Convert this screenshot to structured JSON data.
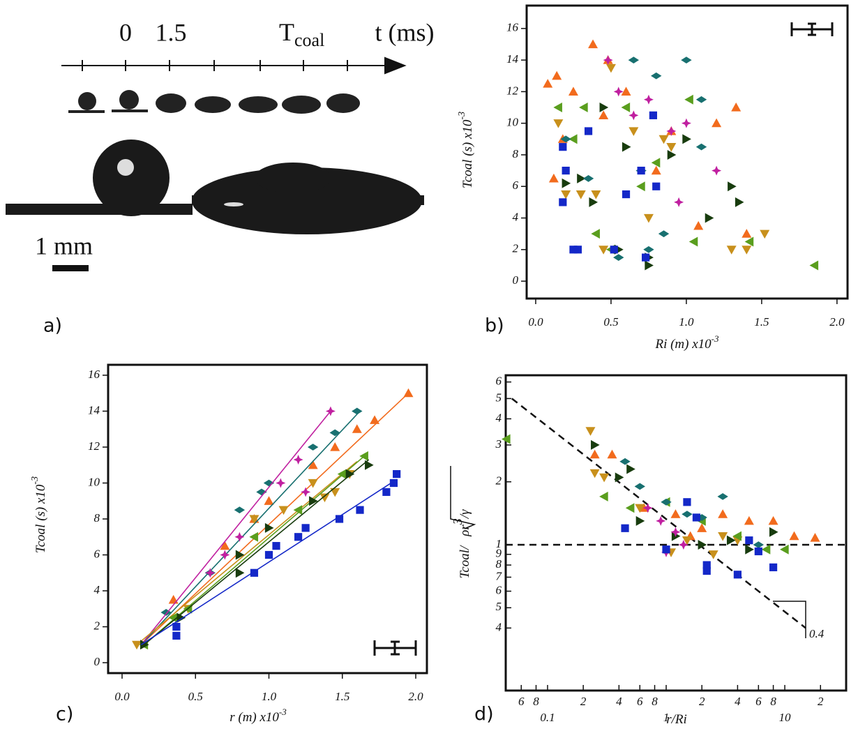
{
  "timeline": {
    "ticks": [
      "0",
      "1.5"
    ],
    "t_coal": "T",
    "t_coal_sub": "coal",
    "axis_label": "t (ms)"
  },
  "scale_bar": "1 mm",
  "panel_labels": [
    "a)",
    "b)",
    "c)",
    "d)"
  ],
  "chart_data": [
    {
      "type": "scatter",
      "xlabel": "Ri (m) x10",
      "xlabel_exp": "-3",
      "ylabel": "Tcoal (s) x10",
      "ylabel_exp": "-3",
      "xlim": [
        -0.06,
        2.07
      ],
      "ylim": [
        -1.1,
        17.45
      ],
      "xticks": [
        {
          "value": 0,
          "label": "0.0"
        },
        0.5,
        {
          "value": 1,
          "label": "1.0"
        },
        1.5,
        {
          "value": 2,
          "label": "2.0"
        }
      ],
      "yticks": [
        0,
        2,
        4,
        6,
        8,
        10,
        12,
        14,
        16
      ],
      "series": [
        {
          "color": "#f26b1d",
          "marker": "up",
          "x": [
            0.08,
            0.14,
            0.25,
            0.38,
            0.48,
            0.12,
            0.18,
            0.45,
            0.6,
            0.9,
            1.2,
            1.33,
            1.08,
            1.4,
            0.8
          ],
          "y": [
            12.5,
            13,
            12,
            15,
            14,
            6.5,
            9,
            10.5,
            12,
            9.5,
            10,
            11,
            3.5,
            3,
            7
          ]
        },
        {
          "color": "#c8901c",
          "marker": "down",
          "x": [
            0.15,
            0.2,
            0.3,
            0.4,
            0.5,
            0.45,
            0.65,
            0.75,
            0.9,
            1.3,
            1.52,
            1.4,
            0.85
          ],
          "y": [
            10,
            5.5,
            5.5,
            5.5,
            13.5,
            2,
            9.5,
            4,
            8.5,
            2,
            3,
            2,
            9
          ]
        },
        {
          "color": "#5a9e1e",
          "marker": "left",
          "x": [
            0.15,
            0.32,
            0.4,
            0.5,
            0.6,
            0.8,
            1.02,
            1.05,
            1.42,
            1.85,
            0.25,
            0.7
          ],
          "y": [
            11,
            11,
            3,
            2,
            11,
            7.5,
            11.5,
            2.5,
            2.5,
            1,
            9,
            6
          ]
        },
        {
          "color": "#183c0e",
          "marker": "right",
          "x": [
            0.3,
            0.38,
            0.45,
            0.55,
            0.75,
            0.75,
            0.9,
            1.0,
            1.15,
            1.3,
            1.35,
            0.6,
            0.2
          ],
          "y": [
            6.5,
            5,
            11,
            2,
            1,
            1.5,
            8,
            9,
            4,
            6,
            5,
            8.5,
            6.2
          ]
        },
        {
          "color": "#187070",
          "marker": "diamond",
          "x": [
            0.2,
            0.35,
            0.55,
            0.65,
            0.8,
            1.0,
            1.1,
            0.7,
            0.85,
            1.1,
            0.75
          ],
          "y": [
            9,
            6.5,
            1.5,
            14,
            13,
            14,
            11.5,
            7,
            3,
            8.5,
            2
          ]
        },
        {
          "color": "#c020a0",
          "marker": "star",
          "x": [
            0.48,
            0.55,
            0.75,
            0.95,
            1.0,
            1.2,
            0.65,
            0.9
          ],
          "y": [
            14,
            12,
            11.5,
            5,
            10,
            7,
            10.5,
            9.5
          ]
        },
        {
          "color": "#1428c8",
          "marker": "square",
          "x": [
            0.18,
            0.18,
            0.2,
            0.25,
            0.28,
            0.52,
            0.6,
            0.7,
            0.78,
            0.8,
            0.73,
            0.35
          ],
          "y": [
            5,
            8.5,
            7,
            2,
            2,
            2,
            5.5,
            7,
            10.5,
            6,
            1.5,
            9.5
          ]
        }
      ]
    },
    {
      "type": "scatter",
      "xlabel": "r (m) x10",
      "xlabel_exp": "-3",
      "ylabel": "Tcoal (s) x10",
      "ylabel_exp": "-3",
      "xlim": [
        -0.095,
        2.076
      ],
      "ylim": [
        -0.58,
        16.58
      ],
      "xticks": [
        {
          "value": 0,
          "label": "0.0"
        },
        0.5,
        {
          "value": 1,
          "label": "1.0"
        },
        1.5,
        {
          "value": 2,
          "label": "2.0"
        }
      ],
      "yticks": [
        0,
        2,
        4,
        6,
        8,
        10,
        12,
        14,
        16
      ],
      "series": [
        {
          "color": "#f26b1d",
          "marker": "up",
          "x": [
            0.35,
            0.9,
            1.0,
            1.3,
            1.45,
            1.6,
            1.72,
            1.95,
            0.7
          ],
          "y": [
            3.5,
            8,
            9,
            11,
            12,
            13,
            13.5,
            15,
            6.5
          ],
          "fit_x": [
            0.13,
            1.95
          ],
          "fit_y": [
            1,
            15
          ]
        },
        {
          "color": "#187070",
          "marker": "diamond",
          "x": [
            0.3,
            0.8,
            0.95,
            1.3,
            1.45,
            1.6,
            1.0,
            0.6
          ],
          "y": [
            2.8,
            8.5,
            9.5,
            12,
            12.8,
            14,
            10,
            5
          ],
          "fit_x": [
            0.13,
            1.62
          ],
          "fit_y": [
            1,
            14
          ]
        },
        {
          "color": "#c020a0",
          "marker": "star",
          "x": [
            0.7,
            0.8,
            1.08,
            1.2,
            1.42,
            1.25,
            0.6
          ],
          "y": [
            6,
            7,
            10,
            11.3,
            14,
            9.5,
            5
          ],
          "fit_x": [
            0.13,
            1.42
          ],
          "fit_y": [
            1,
            14
          ]
        },
        {
          "color": "#c8901c",
          "marker": "down",
          "x": [
            0.1,
            0.45,
            0.9,
            1.1,
            1.3,
            1.45,
            1.55,
            1.38
          ],
          "y": [
            1,
            3,
            8,
            8.5,
            10,
            9.5,
            10.5,
            9.2
          ],
          "fit_x": [
            0.1,
            1.6
          ],
          "fit_y": [
            1,
            11.2
          ]
        },
        {
          "color": "#5a9e1e",
          "marker": "left",
          "x": [
            0.15,
            0.45,
            0.9,
            1.2,
            1.5,
            1.65,
            0.35
          ],
          "y": [
            1,
            3,
            7,
            8.5,
            10.5,
            11.5,
            2.5
          ],
          "fit_x": [
            0.15,
            1.65
          ],
          "fit_y": [
            1,
            11.5
          ]
        },
        {
          "color": "#183c0e",
          "marker": "right",
          "x": [
            0.15,
            0.4,
            0.8,
            1.0,
            1.3,
            1.55,
            1.68,
            0.8
          ],
          "y": [
            1,
            2.5,
            6,
            7.5,
            9,
            10.5,
            11,
            5
          ],
          "fit_x": [
            0.15,
            1.68
          ],
          "fit_y": [
            1,
            11.3
          ]
        },
        {
          "color": "#1428c8",
          "marker": "square",
          "x": [
            0.37,
            0.37,
            0.9,
            1.0,
            1.05,
            1.2,
            1.25,
            1.48,
            1.62,
            1.8,
            1.85,
            1.87
          ],
          "y": [
            1.5,
            2,
            5,
            6,
            6.5,
            7,
            7.5,
            8,
            8.5,
            9.5,
            10,
            10.5
          ],
          "fit_x": [
            0.13,
            1.87
          ],
          "fit_y": [
            1,
            10.2
          ]
        }
      ]
    },
    {
      "type": "scatter",
      "log": true,
      "xlabel": "r/Ri",
      "ylabel": "Tcoal/",
      "ylabel_root": "ρr",
      "ylabel_root_exp": "3",
      "ylabel_root_end": "/γ",
      "annotation": "0.4",
      "xlim": [
        0.0444,
        32.9
      ],
      "ylim": [
        0.201,
        6.46
      ],
      "xticks": [
        {
          "value": 0.06,
          "label": "6"
        },
        {
          "value": 0.08,
          "label": "8"
        },
        0.1,
        {
          "value": 0.2,
          "label": "2"
        },
        {
          "value": 0.4,
          "label": "4"
        },
        {
          "value": 0.6,
          "label": "6"
        },
        {
          "value": 0.8,
          "label": "8"
        },
        1,
        2,
        4,
        6,
        8,
        10,
        {
          "value": 20,
          "label": "2"
        }
      ],
      "yticks": [
        {
          "value": 0.4,
          "label": "4"
        },
        {
          "value": 0.5,
          "label": "5"
        },
        {
          "value": 0.6,
          "label": "6"
        },
        {
          "value": 0.7,
          "label": "7"
        },
        {
          "value": 0.8,
          "label": "8"
        },
        {
          "value": 0.9,
          "label": "9"
        },
        1,
        2,
        3,
        4,
        5,
        6
      ],
      "reference_lines": [
        {
          "x": [
            0.0444,
            32.9
          ],
          "y": [
            1,
            1
          ]
        },
        {
          "x": [
            0.05,
            15
          ],
          "y": [
            5,
            0.4
          ]
        }
      ],
      "series": [
        {
          "color": "#f26b1d",
          "marker": "up",
          "x": [
            0.25,
            0.35,
            0.65,
            1.2,
            2,
            3,
            5,
            8,
            12,
            18,
            1.6
          ],
          "y": [
            2.7,
            2.7,
            1.5,
            1.4,
            1.2,
            1.4,
            1.3,
            1.3,
            1.1,
            1.08,
            1.1
          ]
        },
        {
          "color": "#c8901c",
          "marker": "down",
          "x": [
            0.23,
            0.25,
            0.3,
            0.6,
            1.1,
            2.5,
            3,
            4,
            1.5
          ],
          "y": [
            3.5,
            2.2,
            2.1,
            1.5,
            0.92,
            0.9,
            1.1,
            1.05,
            1.05
          ]
        },
        {
          "color": "#5a9e1e",
          "marker": "left",
          "x": [
            0.045,
            0.3,
            0.5,
            1,
            2,
            4,
            7,
            10
          ],
          "y": [
            3.2,
            1.7,
            1.5,
            1.6,
            1.3,
            1.1,
            0.95,
            0.95
          ]
        },
        {
          "color": "#183c0e",
          "marker": "right",
          "x": [
            0.25,
            0.4,
            0.5,
            0.6,
            1.2,
            2,
            3.5,
            5,
            8
          ],
          "y": [
            3,
            2.1,
            2.3,
            1.3,
            1.1,
            1.0,
            1.05,
            0.95,
            1.15
          ]
        },
        {
          "color": "#187070",
          "marker": "diamond",
          "x": [
            0.45,
            0.6,
            1,
            1.5,
            3,
            2,
            6
          ],
          "y": [
            2.5,
            1.9,
            1.6,
            1.4,
            1.7,
            1.35,
            1.0
          ]
        },
        {
          "color": "#c020a0",
          "marker": "star",
          "x": [
            0.7,
            0.9,
            1.2,
            1.0,
            1.4
          ],
          "y": [
            1.5,
            1.3,
            1.15,
            0.92,
            1.0
          ]
        },
        {
          "color": "#1428c8",
          "marker": "square",
          "x": [
            0.45,
            1,
            1.5,
            1.8,
            2.2,
            2.2,
            4,
            5,
            6,
            8
          ],
          "y": [
            1.2,
            0.95,
            1.6,
            1.35,
            0.75,
            0.8,
            0.72,
            1.05,
            0.93,
            0.78
          ]
        }
      ]
    }
  ]
}
